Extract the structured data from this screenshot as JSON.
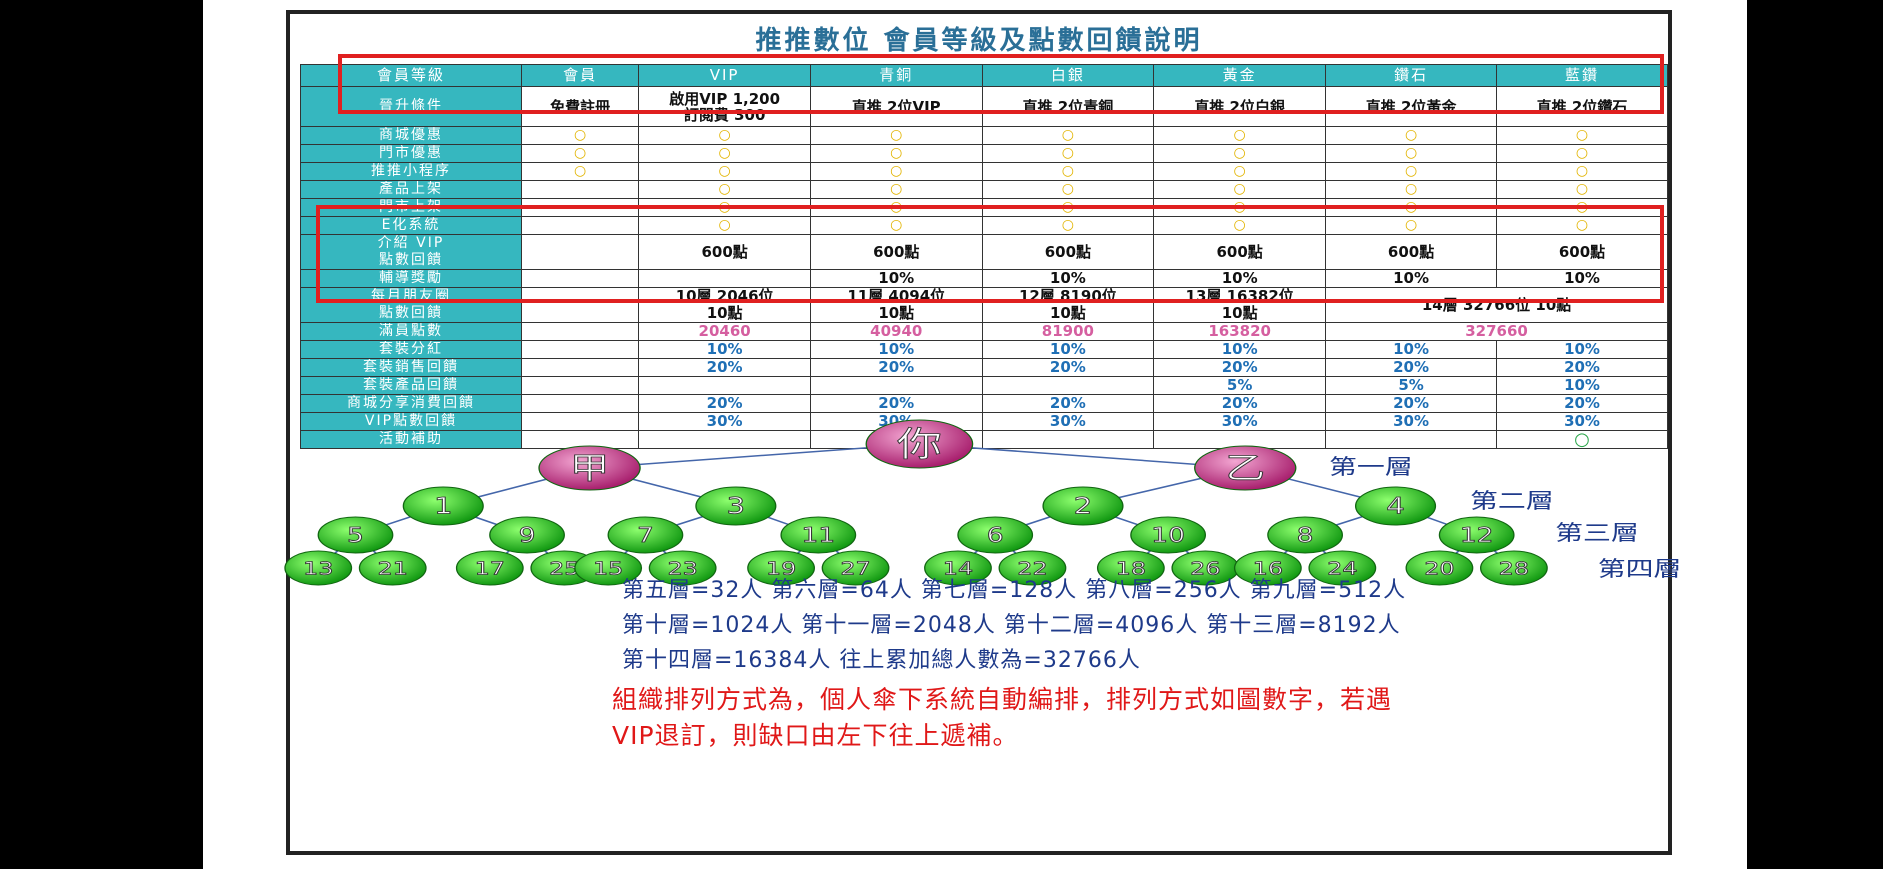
{
  "title": "推推數位  會員等級及點數回饋說明",
  "colors": {
    "header": "#36b7bf",
    "red_box": "#e02020",
    "pink": "#d55fa0",
    "blue": "#1f6fb5",
    "green_node": "#22b822",
    "purple_node": "#c0408a"
  },
  "table": {
    "levels_label": "會員等級",
    "levels": [
      "會員",
      "VIP",
      "青銅",
      "白銀",
      "黃金",
      "鑽石",
      "藍鑽"
    ],
    "upgrade_label": "晉升條件",
    "upgrade": [
      "免費註冊",
      "啟用VIP 1,200\n訂閱費 300",
      "直推 2位VIP",
      "直推 2位青銅",
      "直推 2位白銀",
      "直推 2位黃金",
      "直推 2位鑽石"
    ],
    "rows": [
      {
        "label": "商城優惠",
        "cells": [
          "○",
          "○",
          "○",
          "○",
          "○",
          "○",
          "○"
        ]
      },
      {
        "label": "門市優惠",
        "cells": [
          "○",
          "○",
          "○",
          "○",
          "○",
          "○",
          "○"
        ]
      },
      {
        "label": "推推小程序",
        "cells": [
          "○",
          "○",
          "○",
          "○",
          "○",
          "○",
          "○"
        ]
      },
      {
        "label": "產品上架",
        "cells": [
          "",
          "○",
          "○",
          "○",
          "○",
          "○",
          "○"
        ]
      },
      {
        "label": "門市上架",
        "cells": [
          "",
          "○",
          "○",
          "○",
          "○",
          "○",
          "○"
        ]
      },
      {
        "label": "E化系統",
        "cells": [
          "",
          "○",
          "○",
          "○",
          "○",
          "○",
          "○"
        ]
      },
      {
        "label": "介紹 VIP\n點數回饋",
        "cells": [
          "",
          "600點",
          "600點",
          "600點",
          "600點",
          "600點",
          "600點"
        ]
      },
      {
        "label": "輔導獎勵",
        "cells": [
          "",
          "",
          "10%",
          "10%",
          "10%",
          "10%",
          "10%"
        ]
      },
      {
        "label": "每月朋友圈\n點數回饋",
        "cells": [
          "",
          "10層 2046位\n10點",
          "11層 4094位\n10點",
          "12層 8190位\n10點",
          "13層 16382位\n10點",
          "14層 32766位   10點"
        ]
      },
      {
        "label": "滿員點數",
        "cells": [
          "",
          "20460",
          "40940",
          "81900",
          "163820",
          "327660"
        ]
      },
      {
        "label": "套裝分紅",
        "cells": [
          "",
          "10%",
          "10%",
          "10%",
          "10%",
          "10%",
          "10%"
        ]
      },
      {
        "label": "套裝銷售回饋",
        "cells": [
          "",
          "20%",
          "20%",
          "20%",
          "20%",
          "20%",
          "20%"
        ]
      },
      {
        "label": "套裝產品回饋",
        "cells": [
          "",
          "",
          "",
          "",
          "5%",
          "5%",
          "10%"
        ]
      },
      {
        "label": "商城分享消費回饋",
        "cells": [
          "",
          "20%",
          "20%",
          "20%",
          "20%",
          "20%",
          "20%"
        ]
      },
      {
        "label": "VIP點數回饋",
        "cells": [
          "",
          "30%",
          "30%",
          "30%",
          "30%",
          "30%",
          "30%"
        ]
      },
      {
        "label": "活動補助",
        "cells": [
          "",
          "",
          "",
          "",
          "",
          "",
          "○"
        ]
      }
    ]
  },
  "tree": {
    "root": "你",
    "level1": [
      "甲",
      "乙"
    ],
    "level2": [
      "1",
      "3",
      "2",
      "4"
    ],
    "level3": [
      "5",
      "9",
      "7",
      "11",
      "6",
      "10",
      "8",
      "12"
    ],
    "level4": [
      "13",
      "21",
      "17",
      "25",
      "15",
      "23",
      "19",
      "27",
      "14",
      "22",
      "18",
      "26",
      "16",
      "24",
      "20",
      "28"
    ],
    "level_labels": [
      "第一層",
      "第二層",
      "第三層",
      "第四層"
    ]
  },
  "info_lines": [
    "第五層=32人  第六層=64人  第七層=128人  第八層=256人  第九層=512人",
    "第十層=1024人  第十一層=2048人  第十二層=4096人  第十三層=8192人",
    "第十四層=16384人   往上累加總人數為=32766人"
  ],
  "note_lines": [
    "組織排列方式為，個人傘下系統自動編排，排列方式如圖數字，若遇",
    "VIP退訂，則缺口由左下往上遞補。"
  ]
}
